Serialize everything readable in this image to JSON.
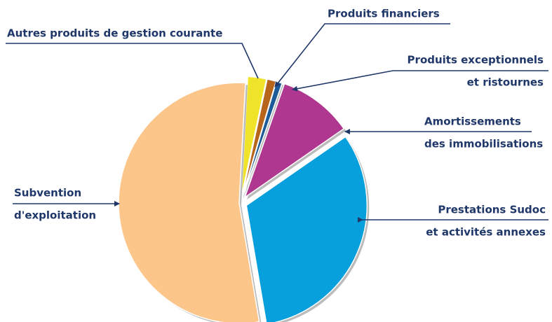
{
  "chart_data": {
    "type": "pie",
    "categories": [
      [
        "Autres produits de gestion courante"
      ],
      [
        "Produits financiers"
      ],
      [
        "Produits exceptionnels",
        "et ristournes"
      ],
      [
        "Amortissements",
        "des immobilisations"
      ],
      [
        "Prestations Sudoc",
        "et activités annexes"
      ],
      [
        "Subvention",
        "d'exploitation"
      ]
    ],
    "values": [
      2.5,
      1.2,
      0.8,
      10,
      32,
      53.5
    ],
    "colors": [
      "#efe42a",
      "#b8651c",
      "#1d5a98",
      "#b0378f",
      "#08a0dc",
      "#fcc589"
    ]
  }
}
